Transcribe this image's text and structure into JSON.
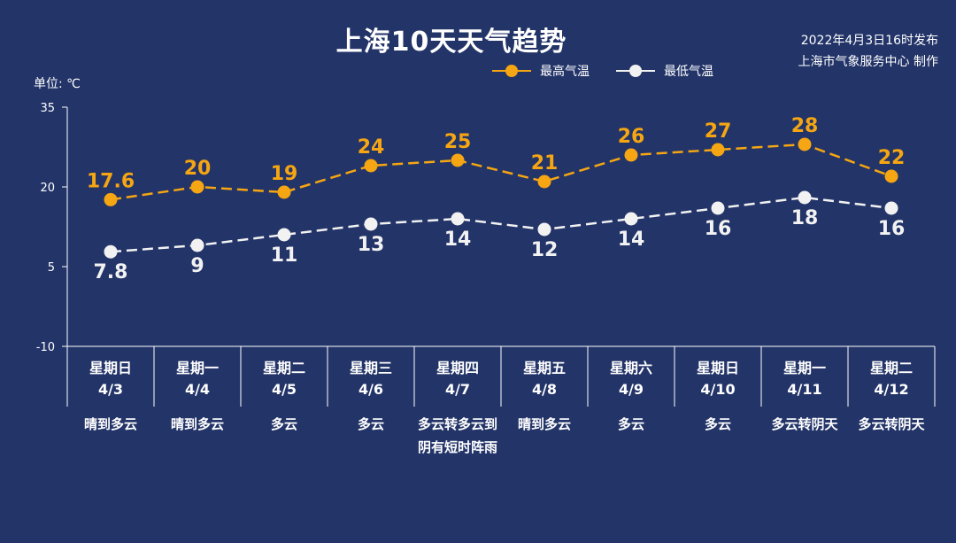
{
  "title": "上海10天天气趋势",
  "publish": {
    "line1": "2022年4月3日16时发布",
    "line2": "上海市气象服务中心 制作"
  },
  "unit_label": "单位: ℃",
  "legend": {
    "high": "最高气温",
    "low": "最低气温"
  },
  "colors": {
    "background": "#233468",
    "high": "#f5a612",
    "low": "#f2f2f2"
  },
  "days": [
    {
      "weekday": "星期日",
      "date": "4/3",
      "weather": "晴到多云"
    },
    {
      "weekday": "星期一",
      "date": "4/4",
      "weather": "晴到多云"
    },
    {
      "weekday": "星期二",
      "date": "4/5",
      "weather": "多云"
    },
    {
      "weekday": "星期三",
      "date": "4/6",
      "weather": "多云"
    },
    {
      "weekday": "星期四",
      "date": "4/7",
      "weather": "多云转多云到阴有短时阵雨"
    },
    {
      "weekday": "星期五",
      "date": "4/8",
      "weather": "晴到多云"
    },
    {
      "weekday": "星期六",
      "date": "4/9",
      "weather": "多云"
    },
    {
      "weekday": "星期日",
      "date": "4/10",
      "weather": "多云"
    },
    {
      "weekday": "星期一",
      "date": "4/11",
      "weather": "多云转阴天"
    },
    {
      "weekday": "星期二",
      "date": "4/12",
      "weather": "多云转阴天"
    }
  ],
  "chart_data": {
    "type": "line",
    "categories": [
      "4/3",
      "4/4",
      "4/5",
      "4/6",
      "4/7",
      "4/8",
      "4/9",
      "4/10",
      "4/11",
      "4/12"
    ],
    "series": [
      {
        "name": "最高气温",
        "values": [
          17.6,
          20,
          19,
          24,
          25,
          21,
          26,
          27,
          28,
          22
        ],
        "labels": [
          "17.6",
          "20",
          "19",
          "24",
          "25",
          "21",
          "26",
          "27",
          "28",
          "22"
        ]
      },
      {
        "name": "最低气温",
        "values": [
          7.8,
          9,
          11,
          13,
          14,
          12,
          14,
          16,
          18,
          16
        ],
        "labels": [
          "7.8",
          "9",
          "11",
          "13",
          "14",
          "12",
          "14",
          "16",
          "18",
          "16"
        ]
      }
    ],
    "ylim": [
      -10,
      35
    ],
    "yticks": [
      35,
      20,
      5,
      -10
    ],
    "ylabel": "单位: ℃",
    "line_style": "dashed",
    "legend_position": "top-right",
    "grid": false
  }
}
